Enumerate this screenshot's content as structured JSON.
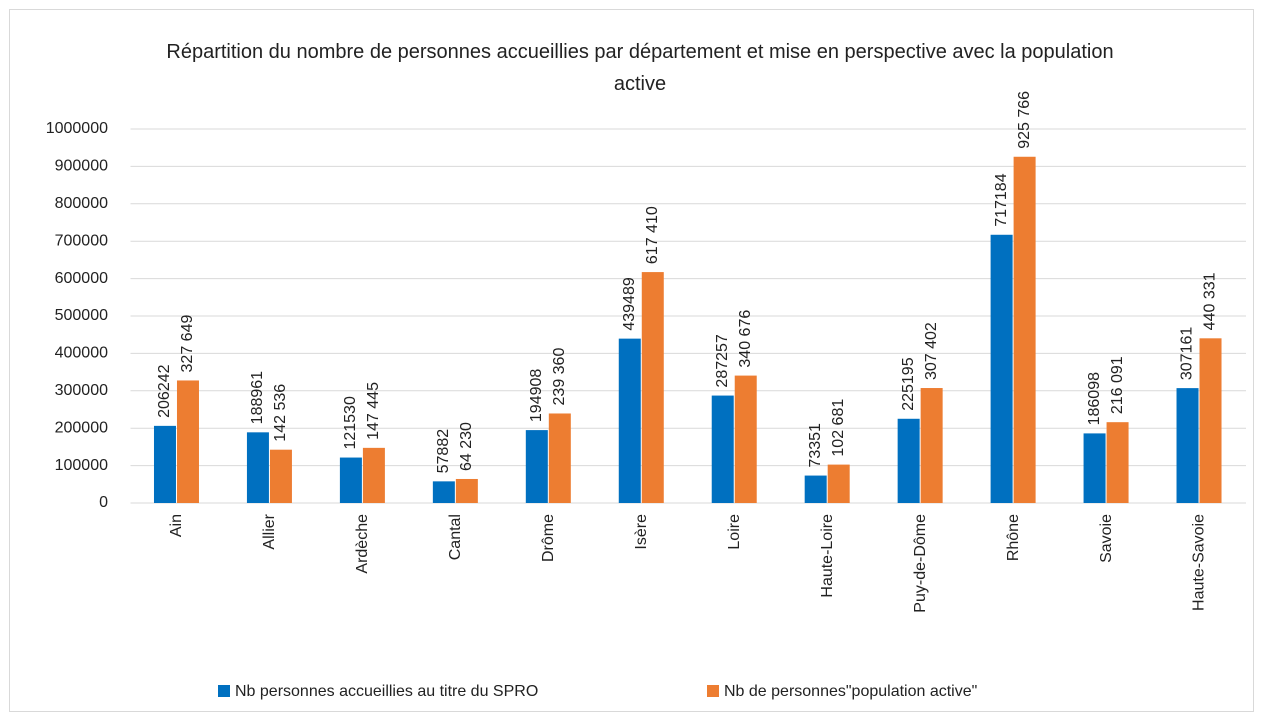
{
  "chart_data": {
    "type": "bar",
    "title": "Répartition du nombre de personnes accueillies par département et mise en perspective avec la population active",
    "categories": [
      "Ain",
      "Allier",
      "Ardèche",
      "Cantal",
      "Drôme",
      "Isère",
      "Loire",
      "Haute-Loire",
      "Puy-de-Dôme",
      "Rhône",
      "Savoie",
      "Haute-Savoie"
    ],
    "series": [
      {
        "name": "Nb personnes accueillies au titre du SPRO",
        "color": "#0070c0",
        "values": [
          206242,
          188961,
          121530,
          57882,
          194908,
          439489,
          287257,
          73351,
          225195,
          717184,
          186098,
          307161
        ]
      },
      {
        "name": "Nb de personnes\"population active\"",
        "color": "#ed7d31",
        "values": [
          327649,
          142536,
          147445,
          64230,
          239360,
          617410,
          340676,
          102681,
          307402,
          925766,
          216091,
          440331
        ],
        "value_labels": [
          "327 649",
          "142 536",
          "147 445",
          "64 230",
          "239 360",
          "617 410",
          "340 676",
          "102 681",
          "307 402",
          "925 766",
          "216 091",
          "440 331"
        ]
      }
    ],
    "ylim": [
      0,
      1000000
    ],
    "yticks": [
      0,
      100000,
      200000,
      300000,
      400000,
      500000,
      600000,
      700000,
      800000,
      900000,
      1000000
    ],
    "grid": true,
    "legend": "bottom"
  }
}
